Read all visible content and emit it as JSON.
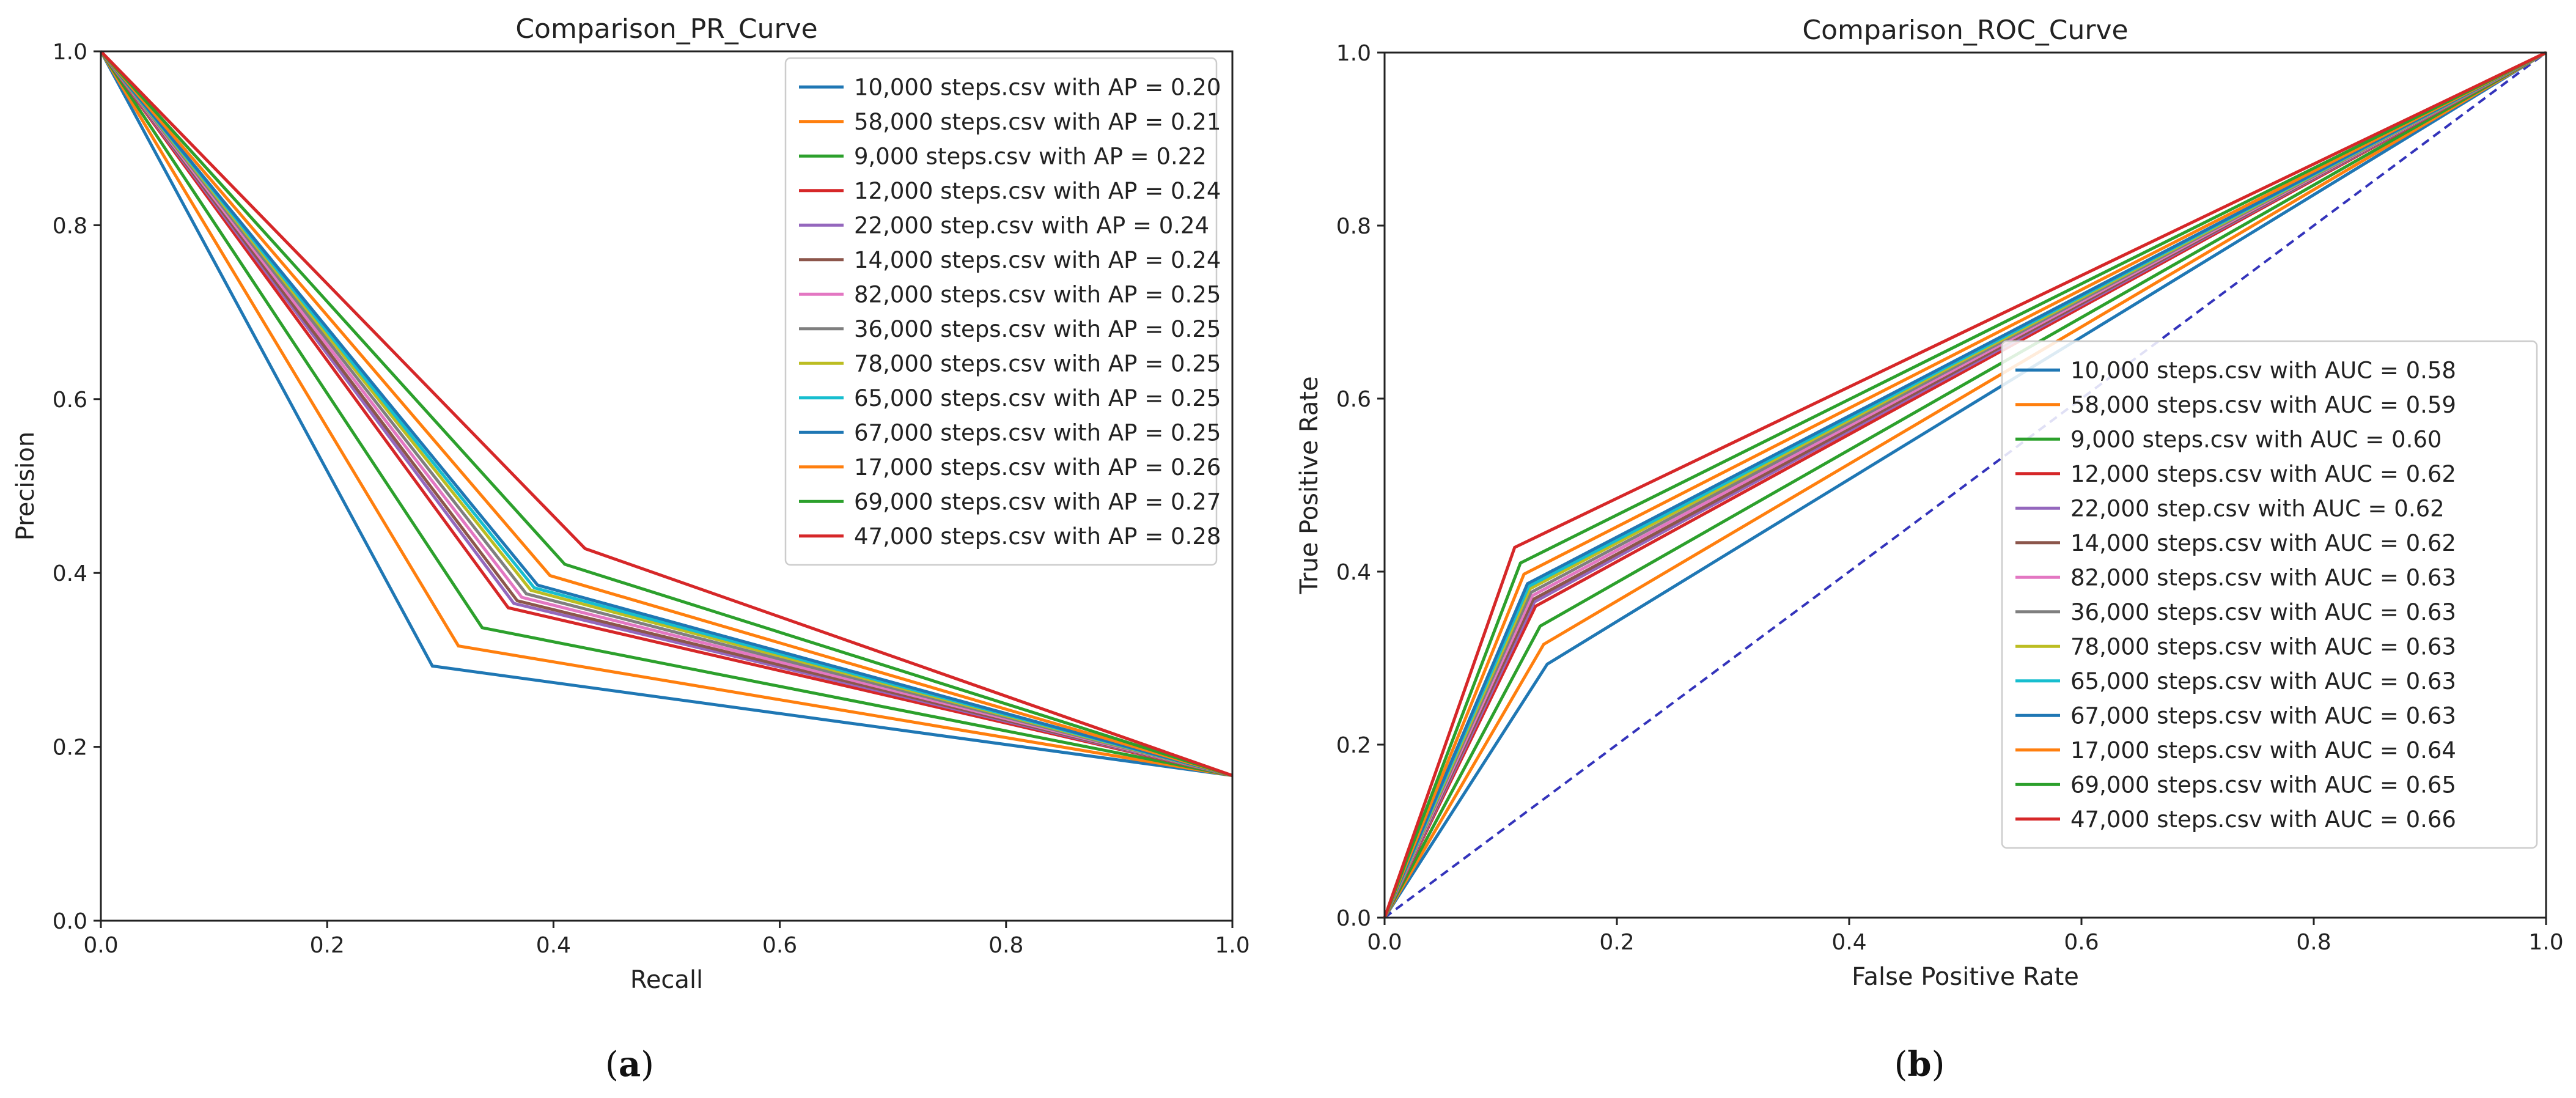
{
  "chart_data": [
    {
      "type": "line",
      "title": "Comparison_PR_Curve",
      "xlabel": "Recall",
      "ylabel": "Precision",
      "xlim": [
        0,
        1
      ],
      "ylim": [
        0,
        1
      ],
      "xticks": [
        "0.0",
        "0.2",
        "0.4",
        "0.6",
        "0.8",
        "1.0"
      ],
      "yticks": [
        "0.0",
        "0.2",
        "0.4",
        "0.6",
        "0.8",
        "1.0"
      ],
      "legend_position": "top-right",
      "caption": "(a)",
      "caption_letter": "a",
      "series": [
        {
          "name": "10,000 steps.csv with AP = 0.20",
          "color": "#1f77b4",
          "x": [
            0,
            0.293,
            1
          ],
          "y": [
            1,
            0.293,
            0.167
          ]
        },
        {
          "name": "58,000 steps.csv with AP = 0.21",
          "color": "#ff7f0e",
          "x": [
            0,
            0.316,
            1
          ],
          "y": [
            1,
            0.316,
            0.167
          ]
        },
        {
          "name": "9,000 steps.csv with AP = 0.22",
          "color": "#2ca02c",
          "x": [
            0,
            0.337,
            1
          ],
          "y": [
            1,
            0.337,
            0.167
          ]
        },
        {
          "name": "12,000 steps.csv with AP = 0.24",
          "color": "#d62728",
          "x": [
            0,
            0.36,
            1
          ],
          "y": [
            1,
            0.36,
            0.167
          ]
        },
        {
          "name": "22,000 step.csv with AP = 0.24",
          "color": "#9467bd",
          "x": [
            0,
            0.365,
            1
          ],
          "y": [
            1,
            0.365,
            0.167
          ]
        },
        {
          "name": "14,000 steps.csv with AP = 0.24",
          "color": "#8c564b",
          "x": [
            0,
            0.368,
            1
          ],
          "y": [
            1,
            0.368,
            0.167
          ]
        },
        {
          "name": "82,000 steps.csv with AP = 0.25",
          "color": "#e377c2",
          "x": [
            0,
            0.372,
            1
          ],
          "y": [
            1,
            0.372,
            0.167
          ]
        },
        {
          "name": "36,000 steps.csv with AP = 0.25",
          "color": "#7f7f7f",
          "x": [
            0,
            0.376,
            1
          ],
          "y": [
            1,
            0.376,
            0.167
          ]
        },
        {
          "name": "78,000 steps.csv with AP = 0.25",
          "color": "#bcbd22",
          "x": [
            0,
            0.38,
            1
          ],
          "y": [
            1,
            0.38,
            0.167
          ]
        },
        {
          "name": "65,000 steps.csv with AP = 0.25",
          "color": "#17becf",
          "x": [
            0,
            0.383,
            1
          ],
          "y": [
            1,
            0.383,
            0.167
          ]
        },
        {
          "name": "67,000 steps.csv with AP = 0.25",
          "color": "#1f77b4",
          "x": [
            0,
            0.386,
            1
          ],
          "y": [
            1,
            0.386,
            0.167
          ]
        },
        {
          "name": "17,000 steps.csv with AP = 0.26",
          "color": "#ff7f0e",
          "x": [
            0,
            0.397,
            1
          ],
          "y": [
            1,
            0.397,
            0.167
          ]
        },
        {
          "name": "69,000 steps.csv with AP = 0.27",
          "color": "#2ca02c",
          "x": [
            0,
            0.41,
            1
          ],
          "y": [
            1,
            0.41,
            0.167
          ]
        },
        {
          "name": "47,000 steps.csv with AP = 0.28",
          "color": "#d62728",
          "x": [
            0,
            0.428,
            1
          ],
          "y": [
            1,
            0.428,
            0.167
          ]
        }
      ]
    },
    {
      "type": "line",
      "title": "Comparison_ROC_Curve",
      "xlabel": "False Positive Rate",
      "ylabel": "True Positive Rate",
      "xlim": [
        0,
        1
      ],
      "ylim": [
        0,
        1
      ],
      "xticks": [
        "0.0",
        "0.2",
        "0.4",
        "0.6",
        "0.8",
        "1.0"
      ],
      "yticks": [
        "0.0",
        "0.2",
        "0.4",
        "0.6",
        "0.8",
        "1.0"
      ],
      "legend_position": "lower-right",
      "caption": "(b)",
      "caption_letter": "b",
      "diagonal": {
        "color": "#3333bb",
        "x": [
          0,
          1
        ],
        "y": [
          0,
          1
        ],
        "style": "dashed"
      },
      "series": [
        {
          "name": "10,000 steps.csv with AUC = 0.58",
          "color": "#1f77b4",
          "x": [
            0,
            0.14,
            1
          ],
          "y": [
            0,
            0.293,
            1
          ]
        },
        {
          "name": "58,000 steps.csv with AUC = 0.59",
          "color": "#ff7f0e",
          "x": [
            0,
            0.137,
            1
          ],
          "y": [
            0,
            0.316,
            1
          ]
        },
        {
          "name": "9,000 steps.csv with AUC = 0.60",
          "color": "#2ca02c",
          "x": [
            0,
            0.134,
            1
          ],
          "y": [
            0,
            0.337,
            1
          ]
        },
        {
          "name": "12,000 steps.csv with AUC = 0.62",
          "color": "#d62728",
          "x": [
            0,
            0.13,
            1
          ],
          "y": [
            0,
            0.36,
            1
          ]
        },
        {
          "name": "22,000 step.csv with AUC = 0.62",
          "color": "#9467bd",
          "x": [
            0,
            0.129,
            1
          ],
          "y": [
            0,
            0.365,
            1
          ]
        },
        {
          "name": "14,000 steps.csv with AUC = 0.62",
          "color": "#8c564b",
          "x": [
            0,
            0.128,
            1
          ],
          "y": [
            0,
            0.368,
            1
          ]
        },
        {
          "name": "82,000 steps.csv with AUC = 0.63",
          "color": "#e377c2",
          "x": [
            0,
            0.127,
            1
          ],
          "y": [
            0,
            0.372,
            1
          ]
        },
        {
          "name": "36,000 steps.csv with AUC = 0.63",
          "color": "#7f7f7f",
          "x": [
            0,
            0.126,
            1
          ],
          "y": [
            0,
            0.376,
            1
          ]
        },
        {
          "name": "78,000 steps.csv with AUC = 0.63",
          "color": "#bcbd22",
          "x": [
            0,
            0.125,
            1
          ],
          "y": [
            0,
            0.38,
            1
          ]
        },
        {
          "name": "65,000 steps.csv with AUC = 0.63",
          "color": "#17becf",
          "x": [
            0,
            0.124,
            1
          ],
          "y": [
            0,
            0.383,
            1
          ]
        },
        {
          "name": "67,000 steps.csv with AUC = 0.63",
          "color": "#1f77b4",
          "x": [
            0,
            0.123,
            1
          ],
          "y": [
            0,
            0.386,
            1
          ]
        },
        {
          "name": "17,000 steps.csv with AUC = 0.64",
          "color": "#ff7f0e",
          "x": [
            0,
            0.12,
            1
          ],
          "y": [
            0,
            0.397,
            1
          ]
        },
        {
          "name": "69,000 steps.csv with AUC = 0.65",
          "color": "#2ca02c",
          "x": [
            0,
            0.117,
            1
          ],
          "y": [
            0,
            0.41,
            1
          ]
        },
        {
          "name": "47,000 steps.csv with AUC = 0.66",
          "color": "#d62728",
          "x": [
            0,
            0.112,
            1
          ],
          "y": [
            0,
            0.428,
            1
          ]
        }
      ]
    }
  ]
}
